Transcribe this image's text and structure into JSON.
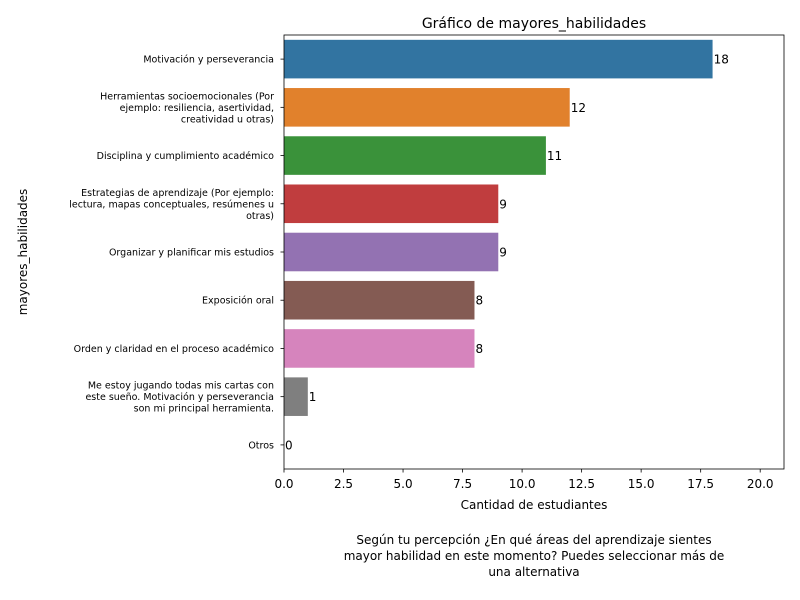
{
  "chart_data": {
    "type": "bar",
    "orientation": "horizontal",
    "title": "Gráfico de mayores_habilidades",
    "xlabel": "Cantidad de estudiantes",
    "ylabel": "mayores_habilidades",
    "caption": [
      "Según tu percepción ¿En qué áreas del aprendizaje sientes",
      "mayor habilidad en este momento? Puedes seleccionar más de",
      "una alternativa"
    ],
    "xlim": [
      0,
      21
    ],
    "xticks": [
      "0.0",
      "2.5",
      "5.0",
      "7.5",
      "10.0",
      "12.5",
      "15.0",
      "17.5",
      "20.0"
    ],
    "grid": false,
    "categories": [
      [
        "Motivación y perseverancia"
      ],
      [
        "Herramientas socioemocionales (Por",
        "ejemplo: resiliencia, asertividad,",
        "creatividad u otras)"
      ],
      [
        "Disciplina y cumplimiento académico"
      ],
      [
        "Estrategias de aprendizaje (Por ejemplo:",
        "lectura, mapas conceptuales, resúmenes u",
        "otras)"
      ],
      [
        "Organizar y planificar mis estudios"
      ],
      [
        "Exposición oral"
      ],
      [
        "Orden y claridad en el proceso académico"
      ],
      [
        "Me estoy jugando todas mis cartas con",
        "este sueño. Motivación y perseverancia",
        "son mi principal herramienta."
      ],
      [
        "Otros"
      ]
    ],
    "values": [
      18,
      12,
      11,
      9,
      9,
      8,
      8,
      1,
      0
    ],
    "colors": [
      "#3274a1",
      "#e1812c",
      "#3a923a",
      "#c03d3e",
      "#9372b2",
      "#845b53",
      "#d684bd",
      "#7f7f7f",
      "#a9aa35"
    ]
  }
}
